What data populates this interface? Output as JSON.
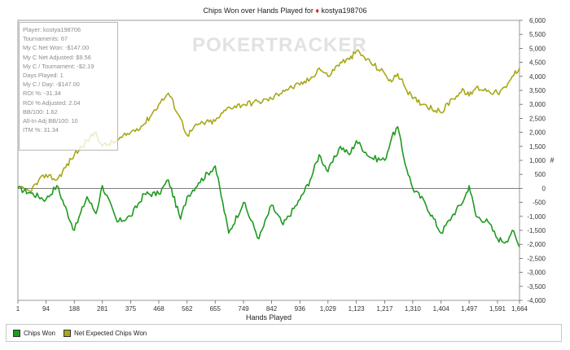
{
  "chart_data": {
    "type": "line",
    "title_prefix": "Chips Won over Hands Played for",
    "title_player": "kostya198706",
    "xlabel": "Hands Played",
    "ylabel": "#",
    "xlim": [
      1,
      1664
    ],
    "ylim": [
      -4000,
      6000
    ],
    "x_ticks": [
      1,
      94,
      188,
      281,
      375,
      468,
      562,
      655,
      749,
      842,
      936,
      1029,
      1123,
      1217,
      1310,
      1404,
      1497,
      1591,
      1664
    ],
    "x_tick_labels": [
      "1",
      "94",
      "188",
      "281",
      "375",
      "468",
      "562",
      "655",
      "749",
      "842",
      "936",
      "1,029",
      "1,123",
      "1,217",
      "1,310",
      "1,404",
      "1,497",
      "1,591",
      "1,664"
    ],
    "y_ticks": [
      -4000,
      -3500,
      -3000,
      -2500,
      -2000,
      -1500,
      -1000,
      -500,
      0,
      500,
      1000,
      1500,
      2000,
      2500,
      3000,
      3500,
      4000,
      4500,
      5000,
      5500,
      6000
    ],
    "y_tick_labels": [
      "-4,000",
      "-3,500",
      "-3,000",
      "-2,500",
      "-2,000",
      "-1,500",
      "-1,000",
      "-500",
      "0",
      "500",
      "1,000",
      "1,500",
      "2,000",
      "2,500",
      "3,000",
      "3,500",
      "4,000",
      "4,500",
      "5,000",
      "5,500",
      "6,000"
    ],
    "series": [
      {
        "name": "Chips Won",
        "color": "#1e9a1e",
        "x": [
          1,
          40,
          94,
          130,
          188,
          230,
          260,
          281,
          330,
          375,
          420,
          468,
          500,
          540,
          562,
          600,
          655,
          700,
          749,
          800,
          842,
          880,
          936,
          970,
          1000,
          1029,
          1070,
          1100,
          1123,
          1170,
          1217,
          1240,
          1260,
          1280,
          1310,
          1350,
          1404,
          1440,
          1480,
          1497,
          1520,
          1560,
          1591,
          1620,
          1640,
          1664
        ],
        "values": [
          0,
          -150,
          -400,
          100,
          -1500,
          -300,
          -900,
          100,
          -1200,
          -1000,
          -200,
          -200,
          300,
          -1100,
          -300,
          200,
          800,
          -1600,
          -500,
          -1800,
          -600,
          -1300,
          -400,
          300,
          1200,
          600,
          1500,
          1200,
          1700,
          1100,
          1000,
          1800,
          2200,
          1100,
          0,
          -500,
          -1600,
          -1000,
          -400,
          100,
          -1000,
          -1200,
          -1800,
          -1900,
          -1500,
          -2100
        ]
      },
      {
        "name": "Net Expected Chips Won",
        "color": "#a8a818",
        "x": [
          1,
          40,
          94,
          130,
          188,
          230,
          260,
          281,
          330,
          375,
          420,
          468,
          500,
          540,
          562,
          600,
          655,
          700,
          749,
          800,
          842,
          880,
          936,
          970,
          1000,
          1029,
          1070,
          1100,
          1123,
          1170,
          1217,
          1240,
          1260,
          1280,
          1310,
          1350,
          1404,
          1440,
          1480,
          1497,
          1520,
          1560,
          1591,
          1620,
          1640,
          1664
        ],
        "values": [
          0,
          -100,
          500,
          300,
          1200,
          1700,
          2000,
          1500,
          1700,
          2000,
          2300,
          3000,
          3400,
          2500,
          1900,
          2300,
          2400,
          2900,
          3000,
          3100,
          3200,
          3500,
          3700,
          3900,
          4300,
          4000,
          4500,
          4600,
          4900,
          4500,
          4100,
          3800,
          4100,
          3700,
          3200,
          3000,
          2700,
          3200,
          3500,
          3300,
          3600,
          3500,
          3400,
          3600,
          4000,
          4300
        ]
      }
    ],
    "legend_position": "bottom-left"
  },
  "stats": [
    "Player: kostya198706",
    "Tournaments: 67",
    "My C Net Won: -$147.00",
    "My C Net Adjusted: $9.56",
    "My C / Tournament: -$2.19",
    "Days Played: 1",
    "My C / Day: -$147.00",
    "ROI %: -31.34",
    "ROI % Adjusted: 2.04",
    "BB/100: 1.62",
    "All-In Adj BB/100: 10",
    "ITM %: 31.34"
  ],
  "watermark": "POKERTRACKER"
}
